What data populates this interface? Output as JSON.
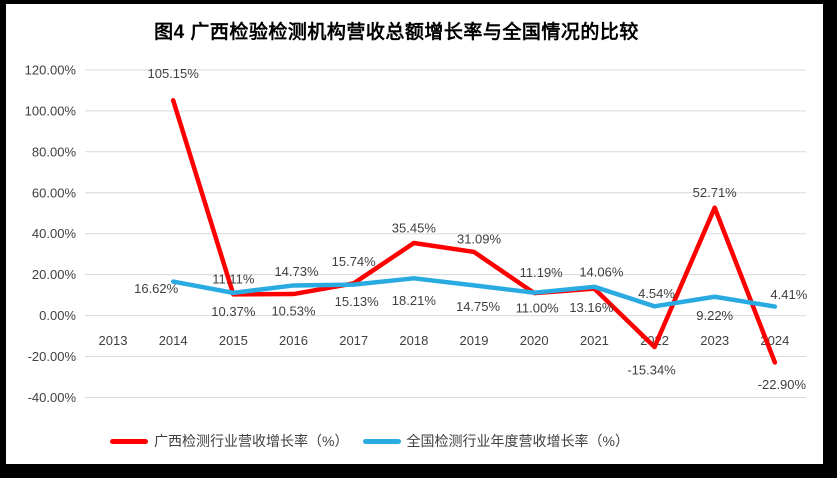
{
  "window": {
    "frame_color": "#000000",
    "card_color": "#ffffff"
  },
  "chart": {
    "title": "图4 广西检验检测机构营收总额增长率与全国情况的比较"
  },
  "chart_data": {
    "type": "line",
    "title": "图4 广西检验检测机构营收总额增长率与全国情况的比较",
    "categories": [
      "2013",
      "2014",
      "2015",
      "2016",
      "2017",
      "2018",
      "2019",
      "2020",
      "2021",
      "2022",
      "2023",
      "2024"
    ],
    "y_axis": {
      "min": -40,
      "max": 120,
      "step": 20,
      "tick_labels_top_to_bottom": [
        "120.00%",
        "100.00%",
        "80.00%",
        "60.00%",
        "40.00%",
        "20.00%",
        "0.00%",
        "-20.00%",
        "-40.00%"
      ]
    },
    "grid": true,
    "grid_color": "#d9d9d9",
    "text_color": "#404040",
    "legend_position": "bottom",
    "series": [
      {
        "name": "广西检测行业营收增长率（%）",
        "color": "#ff0000",
        "values": [
          null,
          105.15,
          10.37,
          10.53,
          15.74,
          35.45,
          31.09,
          11.0,
          13.16,
          -15.34,
          52.71,
          -22.9
        ],
        "point_labels": [
          null,
          "105.15%",
          "10.37%",
          "10.53%",
          "15.74%",
          "35.45%",
          "31.09%",
          "11.00%",
          "13.16%",
          "-15.34%",
          "52.71%",
          "-22.90%"
        ],
        "label_offsets": [
          null,
          [
            0,
            -27
          ],
          [
            0,
            17
          ],
          [
            0,
            17
          ],
          [
            0,
            -22
          ],
          [
            0,
            -15
          ],
          [
            5,
            -13
          ],
          [
            3,
            15
          ],
          [
            -3,
            19
          ],
          [
            -3,
            23
          ],
          [
            0,
            -15
          ],
          [
            7,
            22
          ]
        ]
      },
      {
        "name": "全国检测行业年度营收增长率（%）",
        "color": "#29abe2",
        "values": [
          null,
          16.62,
          11.11,
          14.73,
          15.13,
          18.21,
          14.75,
          11.19,
          14.06,
          4.54,
          9.22,
          4.41
        ],
        "point_labels": [
          null,
          "16.62%",
          "11.11%",
          "14.73%",
          "15.13%",
          "18.21%",
          "14.75%",
          "11.19%",
          "14.06%",
          "4.54%",
          "9.22%",
          "4.41%"
        ],
        "label_offsets": [
          null,
          [
            -17,
            7
          ],
          [
            0,
            -14
          ],
          [
            3,
            -14
          ],
          [
            3,
            17
          ],
          [
            0,
            22
          ],
          [
            4,
            21
          ],
          [
            7,
            -20
          ],
          [
            7,
            -15
          ],
          [
            2,
            -13
          ],
          [
            0,
            19
          ],
          [
            14,
            -12
          ]
        ]
      }
    ]
  }
}
